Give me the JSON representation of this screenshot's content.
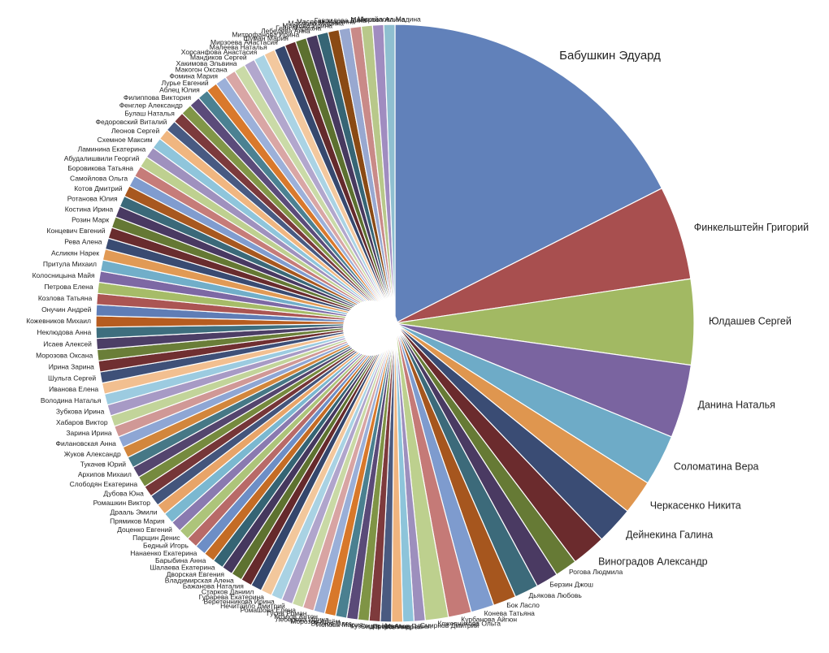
{
  "chart_data": {
    "type": "pie",
    "start_angle_deg": 0,
    "direction": "clockwise",
    "slices": [
      {
        "label": "Бабушкин Эдуард",
        "value": 19.0,
        "color": "#6181ba"
      },
      {
        "label": "Финкельштейн  Григорий",
        "value": 5.5,
        "color": "#a84f4f"
      },
      {
        "label": "Юлдашев Сергей",
        "value": 5.0,
        "color": "#a2b963"
      },
      {
        "label": "Данина  Наталья",
        "value": 4.3,
        "color": "#7a64a0"
      },
      {
        "label": "Соломатина Вера",
        "value": 3.0,
        "color": "#6eabc7"
      },
      {
        "label": "Черкасенко Никита",
        "value": 2.0,
        "color": "#df964f"
      },
      {
        "label": "Дейнекина Галина",
        "value": 2.2,
        "color": "#3a4c74"
      },
      {
        "label": "Виноградов Александр",
        "value": 2.0,
        "color": "#6b2b2d"
      },
      {
        "label": "Рогова Людмила",
        "value": 1.3,
        "color": "#667a35"
      },
      {
        "label": "Берзин Джош",
        "value": 1.3,
        "color": "#4a3a62"
      },
      {
        "label": "Дьякова Любовь",
        "value": 1.4,
        "color": "#3c6a7a"
      },
      {
        "label": "Бок Ласло",
        "value": 1.35,
        "color": "#a6561e"
      },
      {
        "label": "Конева Татьяна",
        "value": 1.35,
        "color": "#7e9bce"
      },
      {
        "label": "Курбанова Айгюн",
        "value": 1.35,
        "color": "#c57a77"
      },
      {
        "label": "Кожевникова Ольга",
        "value": 1.35,
        "color": "#bdd08e"
      },
      {
        "label": "Смирнов Дмитрий",
        "value": 0.65,
        "color": "#9d8fbd"
      },
      {
        "label": "Иванов Павел",
        "value": 0.65,
        "color": "#8dc4da"
      },
      {
        "label": "Петров Андрей",
        "value": 0.65,
        "color": "#f0b47e"
      },
      {
        "label": "Сидорова Анна",
        "value": 0.65,
        "color": "#4a5a80"
      },
      {
        "label": "Кузнецов Илья",
        "value": 0.65,
        "color": "#7e3a3c"
      },
      {
        "label": "Попова Мария",
        "value": 0.65,
        "color": "#7f9445"
      },
      {
        "label": "Волков Олег",
        "value": 0.65,
        "color": "#5a4a78"
      },
      {
        "label": "Морозов Артём",
        "value": 0.65,
        "color": "#4a8090"
      },
      {
        "label": "Лебедева Ирина",
        "value": 0.65,
        "color": "#d8782a"
      },
      {
        "label": "Козлов Антон",
        "value": 0.65,
        "color": "#9aafd8"
      },
      {
        "label": "Гусев Роман",
        "value": 0.65,
        "color": "#d8a4a3"
      },
      {
        "label": "Ромашова Елена",
        "value": 0.65,
        "color": "#c9d9a5"
      },
      {
        "label": "Нечитайло Дмитрий",
        "value": 0.65,
        "color": "#b0a5cc"
      },
      {
        "label": "Веретенникова Ирина",
        "value": 0.65,
        "color": "#a9d2e3"
      },
      {
        "label": "Губарева Екатерина",
        "value": 0.65,
        "color": "#f2c79c"
      },
      {
        "label": "Старков Даниил",
        "value": 0.65,
        "color": "#34466c"
      },
      {
        "label": "Бажанова Наталия",
        "value": 0.65,
        "color": "#662a2c"
      },
      {
        "label": "Владимирская Алена",
        "value": 0.65,
        "color": "#5e7230"
      },
      {
        "label": "Дворская Евгения",
        "value": 0.65,
        "color": "#45385e"
      },
      {
        "label": "Шалаева Екатерина",
        "value": 0.65,
        "color": "#356474"
      },
      {
        "label": "Барыбина Анна",
        "value": 0.65,
        "color": "#c46c25"
      },
      {
        "label": "Нанаенко Екатерина",
        "value": 0.65,
        "color": "#6d8ec6"
      },
      {
        "label": "Бедный Игорь",
        "value": 0.65,
        "color": "#b86a68"
      },
      {
        "label": "Парщин Денис",
        "value": 0.65,
        "color": "#adc47a"
      },
      {
        "label": "Доценко Евгений",
        "value": 0.65,
        "color": "#8a7ab0"
      },
      {
        "label": "Прямиков Мария",
        "value": 0.65,
        "color": "#7bb8d0"
      },
      {
        "label": "Драаль Эмили",
        "value": 0.65,
        "color": "#e8a468"
      },
      {
        "label": "Ромашкин Виктор",
        "value": 0.65,
        "color": "#43557c"
      },
      {
        "label": "Дубова Юна",
        "value": 0.65,
        "color": "#763638"
      },
      {
        "label": "Слободян Екатерина",
        "value": 0.65,
        "color": "#768a3e"
      },
      {
        "label": "Архипов Михаил",
        "value": 0.65,
        "color": "#54456e"
      },
      {
        "label": "Тукачев Юрий",
        "value": 0.65,
        "color": "#467886"
      },
      {
        "label": "Жуков Александр",
        "value": 0.65,
        "color": "#d2863c"
      },
      {
        "label": "Филановская Анна",
        "value": 0.65,
        "color": "#8ea6d4"
      },
      {
        "label": "Зарина Ирина",
        "value": 0.65,
        "color": "#d09896"
      },
      {
        "label": "Хабаров Виктор",
        "value": 0.65,
        "color": "#c2d49a"
      },
      {
        "label": "Зубкова Ирина",
        "value": 0.65,
        "color": "#a79ac5"
      },
      {
        "label": "Володина Наталья",
        "value": 0.65,
        "color": "#9ccbe0"
      },
      {
        "label": "Иванова Елена",
        "value": 0.65,
        "color": "#f2bf90"
      },
      {
        "label": "Шульга Сергей",
        "value": 0.65,
        "color": "#3e5078"
      },
      {
        "label": "Ирина Зарина",
        "value": 0.65,
        "color": "#702f31"
      },
      {
        "label": "Морозова Оксана",
        "value": 0.65,
        "color": "#6a7e38"
      },
      {
        "label": "Исаев Алексей",
        "value": 0.65,
        "color": "#4c3e66"
      },
      {
        "label": "Неклюдова Анна",
        "value": 0.65,
        "color": "#3e6e7e"
      },
      {
        "label": "Кожевников Михаил",
        "value": 0.65,
        "color": "#b65c20"
      },
      {
        "label": "Онучин Андрей",
        "value": 0.65,
        "color": "#5f7db6"
      },
      {
        "label": "Козлова Татьяна",
        "value": 0.65,
        "color": "#ab5553"
      },
      {
        "label": "Петрова Елена",
        "value": 0.65,
        "color": "#a6bc68"
      },
      {
        "label": "Колосницына Майя",
        "value": 0.65,
        "color": "#7d68a4"
      },
      {
        "label": "Притула Михаил",
        "value": 0.65,
        "color": "#71aec9"
      },
      {
        "label": "Асликян Нарек",
        "value": 0.65,
        "color": "#e19a55"
      },
      {
        "label": "Рева Алена",
        "value": 0.65,
        "color": "#394b72"
      },
      {
        "label": "Концевич Евгений",
        "value": 0.65,
        "color": "#692c2e"
      },
      {
        "label": "Розин Марк",
        "value": 0.65,
        "color": "#657834"
      },
      {
        "label": "Костина Ирина",
        "value": 0.65,
        "color": "#493962"
      },
      {
        "label": "Ротанова Юлия",
        "value": 0.65,
        "color": "#3b6979"
      },
      {
        "label": "Котов Дмитрий",
        "value": 0.65,
        "color": "#a8581f"
      },
      {
        "label": "Самойлова Ольга",
        "value": 0.65,
        "color": "#809ccf"
      },
      {
        "label": "Боровикова Татьяна",
        "value": 0.65,
        "color": "#c67c79"
      },
      {
        "label": "Абудалишвили Георгий",
        "value": 0.65,
        "color": "#bed090"
      },
      {
        "label": "Ламинина Екатерина",
        "value": 0.65,
        "color": "#9f91be"
      },
      {
        "label": "Схемное Максим",
        "value": 0.65,
        "color": "#8fc5db"
      },
      {
        "label": "Леонов Сергей",
        "value": 0.65,
        "color": "#f0b680"
      },
      {
        "label": "Федоровский Виталий",
        "value": 0.65,
        "color": "#485a82"
      },
      {
        "label": "Булаш Наталья",
        "value": 0.65,
        "color": "#7c3a3c"
      },
      {
        "label": "Фенглер Александр",
        "value": 0.65,
        "color": "#819647"
      },
      {
        "label": "Филиппова Виктория",
        "value": 0.65,
        "color": "#5b4b7a"
      },
      {
        "label": "Аблец Юлия",
        "value": 0.65,
        "color": "#4b8192"
      },
      {
        "label": "Лурье Евгений",
        "value": 0.65,
        "color": "#d9792c"
      },
      {
        "label": "Фомина Мария",
        "value": 0.65,
        "color": "#9cb0d9"
      },
      {
        "label": "Макогон Оксана",
        "value": 0.65,
        "color": "#d9a6a5"
      },
      {
        "label": "Хакимова Эльвина",
        "value": 0.65,
        "color": "#cadaa7"
      },
      {
        "label": "Мандиков Сергей",
        "value": 0.65,
        "color": "#b2a7cd"
      },
      {
        "label": "Хорсанфова Анастасия",
        "value": 0.65,
        "color": "#aad3e4"
      },
      {
        "label": "Малеева Наталья",
        "value": 0.65,
        "color": "#f3c89e"
      },
      {
        "label": "Мирзоева Анастасия",
        "value": 0.65,
        "color": "#36486e"
      },
      {
        "label": "Шуман Мария",
        "value": 0.65,
        "color": "#642a2c"
      },
      {
        "label": "Митрофанова Ирина",
        "value": 0.65,
        "color": "#5c702f"
      },
      {
        "label": "Лебедева Анна",
        "value": 0.65,
        "color": "#47395f"
      },
      {
        "label": "Гейн Мариана",
        "value": 0.65,
        "color": "#366575"
      },
      {
        "label": "Маякова Ирина",
        "value": 0.65,
        "color": "#8a4a14"
      },
      {
        "label": "Маслова Марина",
        "value": 0.65,
        "color": "#98a8d0"
      },
      {
        "label": "Маслова Маркина",
        "value": 0.65,
        "color": "#c98a88"
      },
      {
        "label": "Гаврилова Дина",
        "value": 0.65,
        "color": "#b8c88a"
      },
      {
        "label": "Майорова Алина",
        "value": 0.65,
        "color": "#a08cc0"
      },
      {
        "label": "Михайлова Мадина",
        "value": 0.65,
        "color": "#8fbfd0"
      }
    ]
  }
}
